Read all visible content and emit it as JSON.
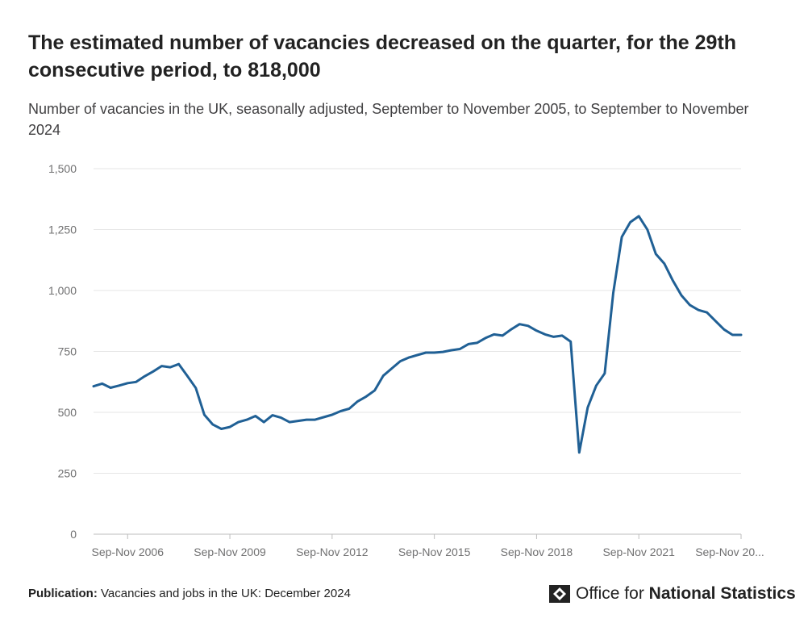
{
  "header": {
    "title": "The estimated number of vacancies decreased on the quarter, for the 29th consecutive period, to 818,000",
    "subtitle": "Number of vacancies in the UK, seasonally adjusted, September to November 2005, to September to November 2024"
  },
  "footer": {
    "publication_label": "Publication:",
    "publication_text": "Vacancies and jobs in the UK: December 2024"
  },
  "logo": {
    "text_plain": "Office for ",
    "text_strong": "National Statistics"
  },
  "colors": {
    "series": "#206095",
    "grid": "#e6e6e6",
    "axis": "#bdbdbd",
    "tick_text": "#707071"
  },
  "chart_data": {
    "type": "line",
    "title": "",
    "xlabel": "",
    "ylabel": "",
    "ylim": [
      0,
      1500
    ],
    "y_ticks": [
      0,
      250,
      500,
      750,
      1000,
      1250,
      1500
    ],
    "y_tick_labels": [
      "0",
      "250",
      "500",
      "750",
      "1,000",
      "1,250",
      "1,500"
    ],
    "x_tick_labels": [
      "Sep-Nov 2006",
      "Sep-Nov 2009",
      "Sep-Nov 2012",
      "Sep-Nov 2015",
      "Sep-Nov 2018",
      "Sep-Nov 2021",
      "Sep-Nov 20..."
    ],
    "x_tick_years": [
      2006,
      2009,
      2012,
      2015,
      2018,
      2021,
      2024
    ],
    "x_range": [
      2005.0,
      2024.0
    ],
    "grid": true,
    "legend": "none",
    "series": [
      {
        "x": [
          2005.0,
          2005.25,
          2005.5,
          2005.75,
          2006.0,
          2006.25,
          2006.5,
          2006.75,
          2007.0,
          2007.25,
          2007.5,
          2007.75,
          2008.0,
          2008.25,
          2008.5,
          2008.75,
          2009.0,
          2009.25,
          2009.5,
          2009.75,
          2010.0,
          2010.25,
          2010.5,
          2010.75,
          2011.0,
          2011.25,
          2011.5,
          2011.75,
          2012.0,
          2012.25,
          2012.5,
          2012.75,
          2013.0,
          2013.25,
          2013.5,
          2013.75,
          2014.0,
          2014.25,
          2014.5,
          2014.75,
          2015.0,
          2015.25,
          2015.5,
          2015.75,
          2016.0,
          2016.25,
          2016.5,
          2016.75,
          2017.0,
          2017.25,
          2017.5,
          2017.75,
          2018.0,
          2018.25,
          2018.5,
          2018.75,
          2019.0,
          2019.25,
          2019.5,
          2019.75,
          2020.0,
          2020.25,
          2020.5,
          2020.75,
          2021.0,
          2021.25,
          2021.5,
          2021.75,
          2022.0,
          2022.25,
          2022.5,
          2022.75,
          2023.0,
          2023.25,
          2023.5,
          2023.75,
          2024.0,
          2024.0
        ],
        "values": [
          607,
          618,
          601,
          610,
          620,
          625,
          648,
          668,
          690,
          685,
          698,
          650,
          600,
          490,
          450,
          432,
          440,
          460,
          470,
          485,
          460,
          488,
          478,
          460,
          465,
          470,
          470,
          480,
          490,
          505,
          515,
          545,
          565,
          590,
          650,
          680,
          710,
          725,
          735,
          745,
          745,
          748,
          755,
          760,
          780,
          785,
          805,
          820,
          815,
          840,
          862,
          855,
          835,
          820,
          810,
          815,
          790,
          335,
          520,
          610,
          660,
          990,
          1220,
          1280,
          1305,
          1250,
          1150,
          1110,
          1040,
          980,
          940,
          920,
          910,
          875,
          840,
          818,
          818,
          818
        ]
      }
    ]
  }
}
